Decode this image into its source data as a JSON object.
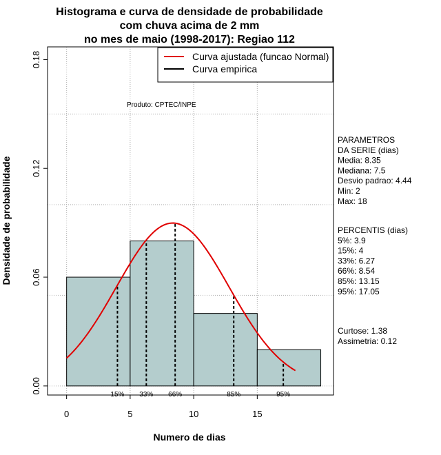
{
  "chart_data": {
    "type": "bar",
    "title_lines": [
      "Histograma e curva de densidade de probabilidade",
      "com chuva acima de 2 mm",
      "no mes de maio (1998-2017): Regiao 112"
    ],
    "xlabel": "Numero de dias",
    "ylabel": "Densidade de probabilidade",
    "xlim": [
      -1.5,
      21
    ],
    "ylim": [
      -0.005,
      0.187
    ],
    "x_ticks": [
      0,
      5,
      10,
      15
    ],
    "y_ticks": [
      0.0,
      0.06,
      0.12,
      0.18
    ],
    "y_tick_labels": [
      "0.00",
      "0.06",
      "0.12",
      "0.18"
    ],
    "x_grid": [
      0,
      5,
      10,
      15
    ],
    "y_grid": [
      0.0,
      0.05,
      0.1,
      0.15
    ],
    "bins": [
      {
        "from": 0,
        "to": 5,
        "density": 0.06
      },
      {
        "from": 5,
        "to": 10,
        "density": 0.08
      },
      {
        "from": 10,
        "to": 15,
        "density": 0.04
      },
      {
        "from": 15,
        "to": 20,
        "density": 0.02
      }
    ],
    "bar_color": "#b4cdcd",
    "curve_color": "#e00000",
    "normal_curve": {
      "mean": 8.35,
      "sd": 4.44,
      "x_from": 0,
      "x_to": 18
    },
    "percentile_lines": [
      {
        "label": "15%",
        "x": 4.0
      },
      {
        "label": "33%",
        "x": 6.27
      },
      {
        "label": "66%",
        "x": 8.54
      },
      {
        "label": "85%",
        "x": 13.15
      },
      {
        "label": "95%",
        "x": 17.05
      }
    ],
    "legend": [
      {
        "label": "Curva ajustada (funcao Normal)",
        "color": "#e00000"
      },
      {
        "label": "Curva empirica",
        "color": "#000000"
      }
    ],
    "legend_position": "top-right",
    "annotation": "Produto: CPTEC/INPE"
  },
  "side_panel": {
    "parametros": [
      "PARAMETROS",
      "DA SERIE (dias)",
      "  Media: 8.35",
      "  Mediana: 7.5",
      "  Desvio padrao: 4.44",
      "  Min: 2",
      "  Max: 18"
    ],
    "percentis": [
      "PERCENTIS (dias)",
      "  5%: 3.9",
      "  15%: 4",
      "  33%: 6.27",
      "  66%: 8.54",
      "  85%: 13.15",
      "  95%: 17.05"
    ],
    "stats": [
      "    Curtose: 1.38",
      "Assimetria: 0.12"
    ]
  }
}
